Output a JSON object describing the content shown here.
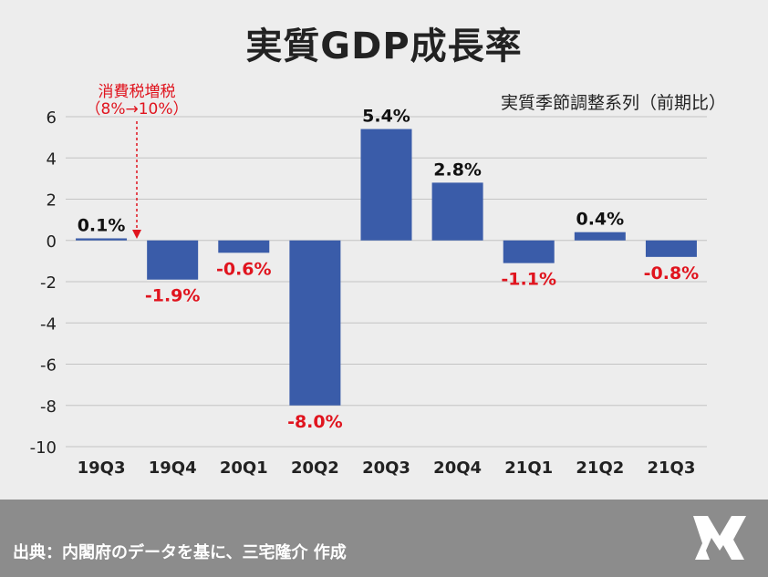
{
  "header": {
    "title": "実質GDP成長率",
    "subtitle": "実質季節調整系列（前期比）"
  },
  "annotation": {
    "line1": "消費税増税",
    "line2": "（8%→10%）"
  },
  "footer": {
    "source": "出典：内閣府のデータを基に、三宅隆介 作成"
  },
  "colors": {
    "bar": "#3a5ca9",
    "positive_label": "#111111",
    "negative_label": "#e0141e",
    "annotation": "#e0141e",
    "footer_bg": "#8c8c8c"
  },
  "chart_data": {
    "type": "bar",
    "title": "実質GDP成長率",
    "subtitle": "実質季節調整系列（前期比）",
    "categories": [
      "19Q3",
      "19Q4",
      "20Q1",
      "20Q2",
      "20Q3",
      "20Q4",
      "21Q1",
      "21Q2",
      "21Q3"
    ],
    "values": [
      0.1,
      -1.9,
      -0.6,
      -8.0,
      5.4,
      2.8,
      -1.1,
      0.4,
      -0.8
    ],
    "value_labels": [
      "0.1%",
      "-1.9%",
      "-0.6%",
      "-8.0%",
      "5.4%",
      "2.8%",
      "-1.1%",
      "0.4%",
      "-0.8%"
    ],
    "ylim": [
      -10,
      6
    ],
    "yticks": [
      6,
      4,
      2,
      0,
      -2,
      -4,
      -6,
      -8,
      -10
    ],
    "grid": true,
    "xlabel": "",
    "ylabel": ""
  }
}
